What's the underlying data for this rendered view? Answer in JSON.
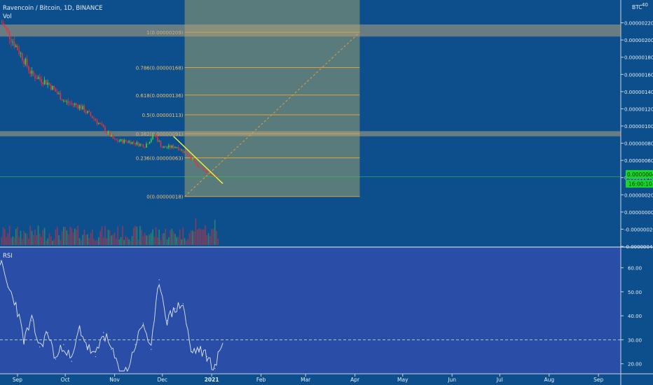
{
  "header": {
    "symbol_line": "Ravencoin / Bitcoin, 1D, BINANCE",
    "vol_label": "Vol"
  },
  "axis": {
    "currency": "BTC",
    "top_tick": "40"
  },
  "price_axis_ticks": [
    "0.00000220",
    "0.00000200",
    "0.00000180",
    "0.00000160",
    "0.00000140",
    "0.00000120",
    "0.00000100",
    "0.00000080",
    "0.00000060",
    "0.00000040",
    "0.00000020",
    "0.00000000",
    "-0.00000020",
    "-0.00000040"
  ],
  "price_badge": {
    "price": "0.00000041",
    "countdown": "16:00:10"
  },
  "fib_levels": [
    {
      "ratio": 1,
      "label": "1(0.00000209)"
    },
    {
      "ratio": 0.786,
      "label": "0.786(0.00000168)"
    },
    {
      "ratio": 0.618,
      "label": "0.618(0.00000136)"
    },
    {
      "ratio": 0.5,
      "label": "0.5(0.00000113)"
    },
    {
      "ratio": 0.382,
      "label": "0.382(0.00000091)"
    },
    {
      "ratio": 0.236,
      "label": "0.236(0.00000063)"
    },
    {
      "ratio": 0,
      "label": "0(0.00000018)"
    }
  ],
  "rsi": {
    "label": "RSI",
    "ticks": [
      "60.00",
      "50.00",
      "40.00",
      "30.00",
      "20.00"
    ],
    "reference_level": 30
  },
  "time_axis": [
    "Sep",
    "Oct",
    "Nov",
    "Dec",
    "2021",
    "Feb",
    "Mar",
    "Apr",
    "May",
    "Jun",
    "Jul",
    "Aug",
    "Sep"
  ],
  "colors": {
    "background": "#0d4f8c",
    "rsi_background": "#2a4ea8",
    "up_candle": "#2fdc3c",
    "down_candle": "#e8323c",
    "fib_line": "#e0a13a",
    "fib_zone": "#9aa070",
    "zone_band": "#b4a27d",
    "trendline": "#f5ef3a",
    "price_badge": "#16d629",
    "rsi_line": "#dfe6f2"
  },
  "chart_data": [
    {
      "type": "candlestick",
      "title": "Ravencoin / Bitcoin, 1D, BINANCE",
      "ylabel": "BTC",
      "x_range": [
        "2020-08-21",
        "2021-09-15"
      ],
      "ylim": [
        -4e-07,
        2.4e-06
      ],
      "close_path": {
        "x": [
          "2020-08-22",
          "2020-09-01",
          "2020-09-10",
          "2020-09-20",
          "2020-10-01",
          "2020-10-10",
          "2020-10-20",
          "2020-11-01",
          "2020-11-10",
          "2020-11-20",
          "2020-11-26",
          "2020-12-01",
          "2020-12-10",
          "2020-12-17",
          "2020-12-25",
          "2021-01-01",
          "2021-01-05"
        ],
        "y": [
          2.2e-06,
          1.9e-06,
          1.6e-06,
          1.5e-06,
          1.28e-06,
          1.23e-06,
          1.07e-06,
          8.3e-07,
          8.2e-07,
          7.7e-07,
          9e-07,
          7.5e-07,
          7.6e-07,
          6.7e-07,
          5e-07,
          4.3e-07,
          4.1e-07
        ]
      },
      "last_price": 4.1e-07,
      "fibonacci": {
        "start_date": "2020-12-15",
        "end_date": "2021-04-04",
        "levels": [
          {
            "ratio": 1,
            "price": 2.09e-06
          },
          {
            "ratio": 0.786,
            "price": 1.68e-06
          },
          {
            "ratio": 0.618,
            "price": 1.36e-06
          },
          {
            "ratio": 0.5,
            "price": 1.13e-06
          },
          {
            "ratio": 0.382,
            "price": 9.1e-07
          },
          {
            "ratio": 0.236,
            "price": 6.3e-07
          },
          {
            "ratio": 0,
            "price": 1.8e-07
          }
        ]
      },
      "resistance_zones": [
        {
          "from": 2.04e-06,
          "to": 2.18e-06
        },
        {
          "from": 8.8e-07,
          "to": 9.4e-07
        }
      ],
      "trendline": {
        "x": [
          "2020-12-08",
          "2021-01-08"
        ],
        "y": [
          8.8e-07,
          3.3e-07
        ]
      },
      "grid": false
    },
    {
      "type": "line",
      "title": "RSI",
      "ylim": [
        17,
        66
      ],
      "x": [
        "2020-08-21",
        "2020-08-26",
        "2020-08-31",
        "2020-09-05",
        "2020-09-10",
        "2020-09-15",
        "2020-09-20",
        "2020-09-25",
        "2020-09-30",
        "2020-10-05",
        "2020-10-10",
        "2020-10-15",
        "2020-10-20",
        "2020-10-25",
        "2020-10-30",
        "2020-11-04",
        "2020-11-09",
        "2020-11-14",
        "2020-11-19",
        "2020-11-24",
        "2020-11-29",
        "2020-12-04",
        "2020-12-09",
        "2020-12-14",
        "2020-12-19",
        "2020-12-24",
        "2020-12-29",
        "2021-01-03",
        "2021-01-08"
      ],
      "values": [
        63,
        52,
        45,
        30,
        38,
        27,
        33,
        22,
        28,
        21,
        35,
        27,
        23,
        33,
        26,
        17,
        17,
        28,
        37,
        26,
        55,
        38,
        43,
        45,
        25,
        26,
        23,
        18,
        30
      ],
      "reference_line": 30,
      "grid": false
    }
  ]
}
